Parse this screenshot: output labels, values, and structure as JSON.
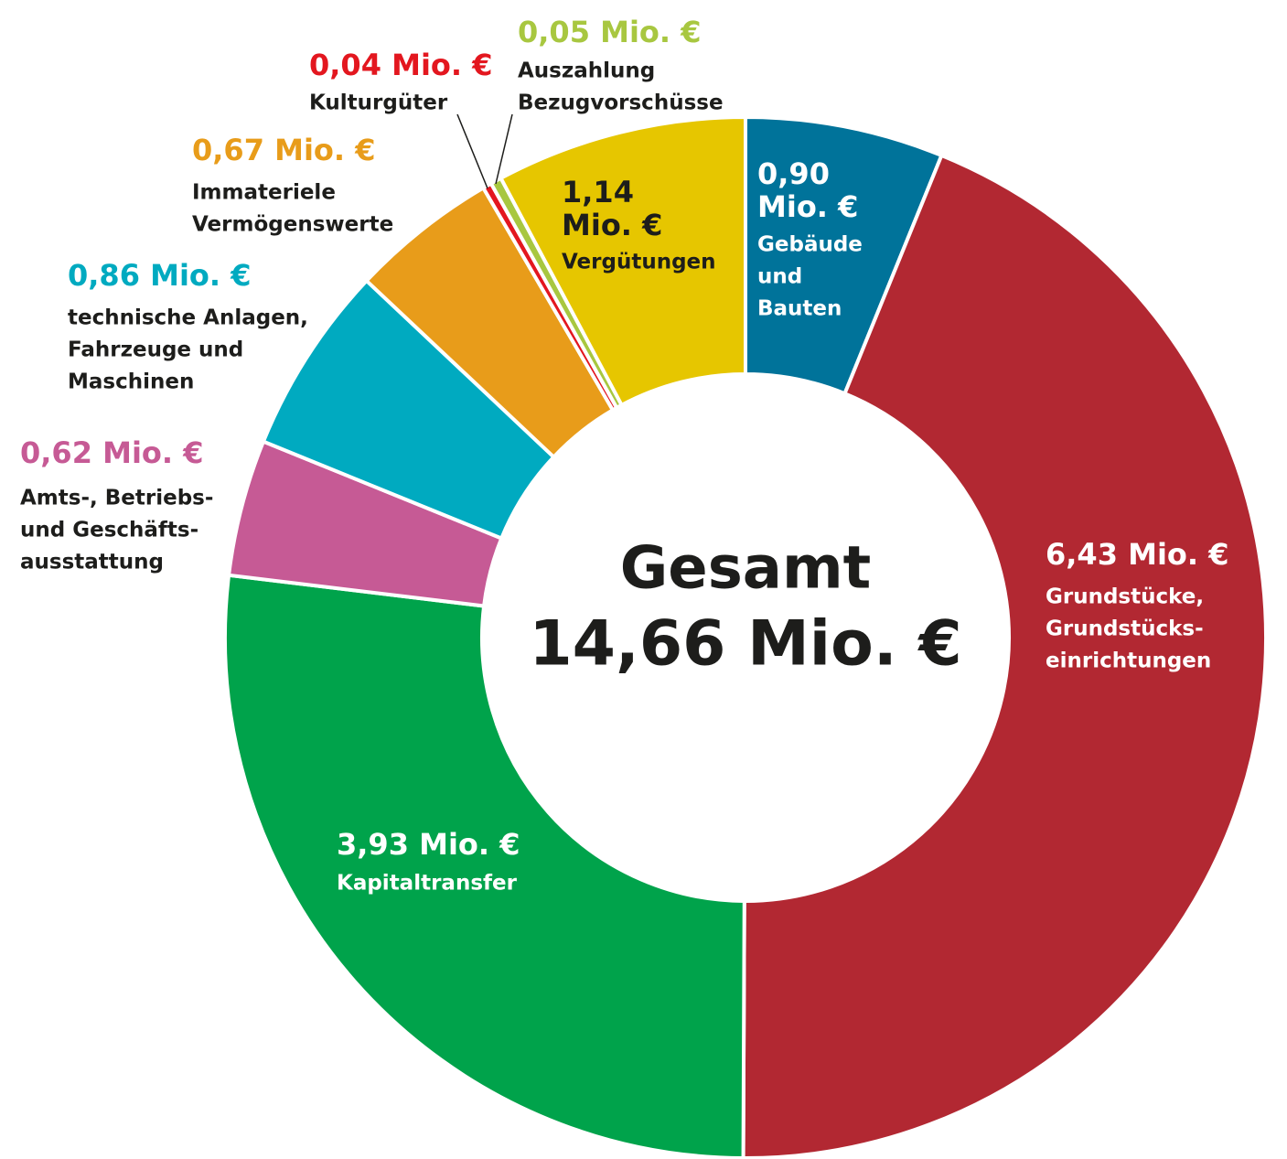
{
  "chart_data": {
    "type": "donut",
    "center_text": [
      "Gesamt",
      "14,66 Mio. €"
    ],
    "categories": [
      [
        "Gebäude",
        "und",
        "Bauten"
      ],
      [
        "Grundstücke,",
        "Grundstücks-",
        "einrichtungen"
      ],
      [
        "Kapitaltransfer"
      ],
      [
        "Amts-, Betriebs-",
        "und Geschäfts-",
        "ausstattung"
      ],
      [
        "technische Anlagen,",
        "Fahrzeuge und",
        "Maschinen"
      ],
      [
        "Immateriele",
        "Vermögenswerte"
      ],
      [
        "Kulturgüter"
      ],
      [
        "Auszahlung",
        "Bezugvorschüsse"
      ],
      [
        "Vergütungen"
      ]
    ],
    "values": [
      0.9,
      6.43,
      3.93,
      0.62,
      0.86,
      0.67,
      0.04,
      0.05,
      1.14
    ],
    "value_labels": [
      [
        "0,90",
        "Mio. €"
      ],
      [
        "6,43 Mio. €"
      ],
      [
        "3,93 Mio. €"
      ],
      [
        "0,62 Mio. €"
      ],
      [
        "0,86 Mio. €"
      ],
      [
        "0,67 Mio. €"
      ],
      [
        "0,04 Mio. €"
      ],
      [
        "0,05 Mio. €"
      ],
      [
        "1,14",
        "Mio. €"
      ]
    ],
    "colors": [
      "#00739a",
      "#b22832",
      "#00a34b",
      "#c65a95",
      "#00aac0",
      "#e89c1a",
      "#e3171f",
      "#a8c740",
      "#e6c600"
    ]
  }
}
